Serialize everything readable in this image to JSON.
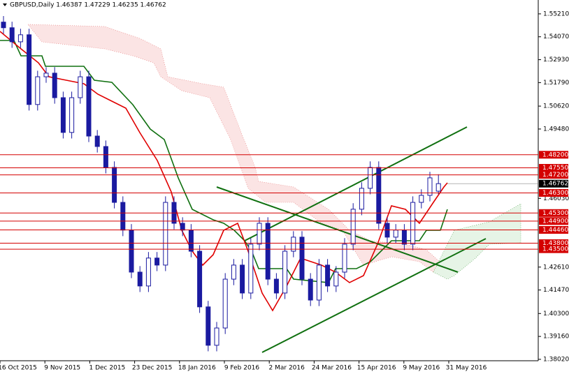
{
  "chart_data": {
    "type": "candlestick",
    "title": "GBPUSD,Daily  1.46387 1.47229 1.46235 1.46762",
    "categories": [
      "16 Oct 2015",
      "9 Nov 2015",
      "1 Dec 2015",
      "23 Dec 2015",
      "18 Jan 2016",
      "9 Feb 2016",
      "2 Mar 2016",
      "24 Mar 2016",
      "15 Apr 2016",
      "9 May 2016",
      "31 May 2016"
    ],
    "color": "#1a1aa0",
    "open": [
      1.548,
      1.5452,
      1.5382,
      1.5417,
      1.507,
      1.5208,
      1.5226,
      1.5104,
      1.4931,
      1.5104,
      1.5208,
      1.4913,
      1.4861,
      1.4757,
      1.4583,
      1.4445,
      1.4236,
      1.4167,
      1.4306,
      1.4271,
      1.4583,
      1.4479,
      1.4445,
      1.434,
      1.4063,
      1.3872,
      1.3958,
      1.4201,
      1.4271,
      1.4132,
      1.4375,
      1.4479,
      1.4201,
      1.4132,
      1.434,
      1.441,
      1.4201,
      1.4097,
      1.4271,
      1.4167,
      1.4236,
      1.4375,
      1.4549,
      1.4653,
      1.4757,
      1.4479,
      1.441,
      1.4445,
      1.4375,
      1.4583,
      1.4618,
      1.46387
    ],
    "high": [
      1.551,
      1.5482,
      1.5447,
      1.5447,
      1.5238,
      1.5256,
      1.5256,
      1.5134,
      1.5134,
      1.5238,
      1.5238,
      1.4943,
      1.4891,
      1.4787,
      1.4613,
      1.4475,
      1.4266,
      1.4336,
      1.4336,
      1.4613,
      1.4613,
      1.4509,
      1.4475,
      1.437,
      1.4093,
      1.3988,
      1.4231,
      1.4301,
      1.4301,
      1.4405,
      1.4509,
      1.4509,
      1.4231,
      1.437,
      1.444,
      1.444,
      1.4231,
      1.4301,
      1.4301,
      1.4266,
      1.4405,
      1.4579,
      1.4683,
      1.4787,
      1.4787,
      1.4509,
      1.4475,
      1.4475,
      1.4613,
      1.4648,
      1.4735,
      1.47229
    ],
    "low": [
      1.5422,
      1.5352,
      1.5352,
      1.504,
      1.504,
      1.5178,
      1.5074,
      1.4901,
      1.4901,
      1.5074,
      1.4883,
      1.4831,
      1.4727,
      1.4553,
      1.4415,
      1.4206,
      1.4137,
      1.4137,
      1.4241,
      1.4241,
      1.4449,
      1.4415,
      1.431,
      1.4033,
      1.3842,
      1.3842,
      1.3928,
      1.4171,
      1.4102,
      1.4102,
      1.4345,
      1.4171,
      1.4102,
      1.4102,
      1.431,
      1.4171,
      1.4067,
      1.4067,
      1.4137,
      1.4137,
      1.4206,
      1.4345,
      1.4519,
      1.4623,
      1.4449,
      1.438,
      1.438,
      1.4345,
      1.4345,
      1.4553,
      1.4588,
      1.46235
    ],
    "close": [
      1.5452,
      1.5382,
      1.5417,
      1.507,
      1.5208,
      1.5226,
      1.5104,
      1.4931,
      1.5104,
      1.5208,
      1.4913,
      1.4861,
      1.4757,
      1.4583,
      1.4445,
      1.4236,
      1.4167,
      1.4306,
      1.4271,
      1.4583,
      1.4479,
      1.4445,
      1.434,
      1.4063,
      1.3872,
      1.3958,
      1.4201,
      1.4271,
      1.4132,
      1.4375,
      1.4479,
      1.4201,
      1.4132,
      1.434,
      1.441,
      1.4201,
      1.4097,
      1.4271,
      1.4167,
      1.4236,
      1.4375,
      1.4549,
      1.4653,
      1.4757,
      1.4479,
      1.441,
      1.4445,
      1.4375,
      1.4583,
      1.4618,
      1.4705,
      1.46762
    ],
    "ylim": [
      1.3795,
      1.559
    ],
    "yticks": [
      {
        "value": 1.5521,
        "label": "1.55210"
      },
      {
        "value": 1.5407,
        "label": "1.54070"
      },
      {
        "value": 1.5293,
        "label": "1.52930"
      },
      {
        "value": 1.5179,
        "label": "1.51790"
      },
      {
        "value": 1.5062,
        "label": "1.50620"
      },
      {
        "value": 1.4948,
        "label": "1.49480"
      },
      {
        "value": 1.4603,
        "label": "1.46030"
      },
      {
        "value": 1.4261,
        "label": "1.42610"
      },
      {
        "value": 1.4147,
        "label": "1.41470"
      },
      {
        "value": 1.403,
        "label": "1.40300"
      },
      {
        "value": 1.3916,
        "label": "1.39160"
      },
      {
        "value": 1.3802,
        "label": "1.38020"
      }
    ],
    "levels": {
      "color": "#d40000",
      "values": [
        1.482,
        1.4755,
        1.472,
        1.463,
        1.453,
        1.449,
        1.4446,
        1.438,
        1.435
      ],
      "value_labels": [
        "1.48200",
        "1.47550",
        "1.47200",
        "1.46300",
        "1.45300",
        "1.44900",
        "1.44460",
        "1.43800",
        "1.43500"
      ]
    },
    "last_price": {
      "value": 1.46762,
      "label": "1.46762"
    }
  }
}
